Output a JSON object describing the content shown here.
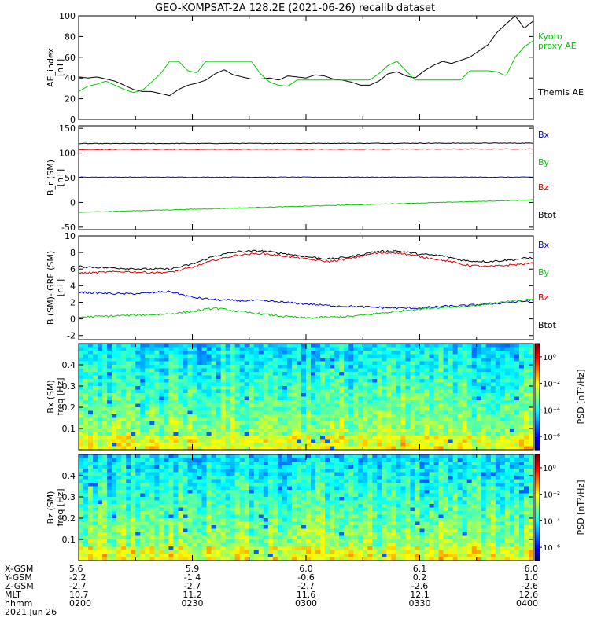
{
  "title": "GEO-KOMPSAT-2A 128.2E (2021-06-26) recalib dataset",
  "colors": {
    "black": "#000000",
    "red": "#dd0000",
    "green": "#00cc00",
    "blue": "#0000cc"
  },
  "chart_data": [
    {
      "type": "line",
      "ylabel": "AE_index",
      "yunits": "[nT]",
      "ylim": [
        0,
        100
      ],
      "yticks": [
        "0",
        "20",
        "40",
        "60",
        "80",
        "100"
      ],
      "legend": [
        {
          "label": "Kyoto",
          "color": "green"
        },
        {
          "label": "proxy AE",
          "color": "green"
        },
        {
          "label": "Themis AE",
          "color": "black"
        }
      ],
      "x": [
        0,
        0.02,
        0.04,
        0.06,
        0.08,
        0.1,
        0.12,
        0.14,
        0.16,
        0.18,
        0.2,
        0.22,
        0.24,
        0.26,
        0.28,
        0.3,
        0.32,
        0.34,
        0.36,
        0.38,
        0.4,
        0.42,
        0.44,
        0.46,
        0.48,
        0.5,
        0.52,
        0.54,
        0.56,
        0.58,
        0.6,
        0.62,
        0.64,
        0.66,
        0.68,
        0.7,
        0.72,
        0.74,
        0.76,
        0.78,
        0.8,
        0.82,
        0.84,
        0.86,
        0.88,
        0.9,
        0.92,
        0.94,
        0.96,
        0.98,
        1.0
      ],
      "series": [
        {
          "color": "black",
          "values": [
            41,
            40,
            41,
            39,
            37,
            33,
            29,
            27,
            27,
            25,
            23,
            29,
            33,
            35,
            38,
            44,
            48,
            43,
            41,
            39,
            39,
            40,
            38,
            42,
            41,
            40,
            43,
            42,
            39,
            38,
            36,
            33,
            33,
            37,
            44,
            46,
            42,
            40,
            47,
            52,
            56,
            54,
            57,
            60,
            66,
            72,
            84,
            92,
            100,
            88,
            95
          ]
        },
        {
          "color": "green",
          "values": [
            27,
            32,
            34,
            37,
            33,
            29,
            26,
            28,
            36,
            44,
            56,
            56,
            47,
            45,
            56,
            56,
            56,
            56,
            56,
            56,
            44,
            36,
            33,
            32,
            38,
            38,
            38,
            38,
            38,
            38,
            38,
            38,
            38,
            44,
            52,
            56,
            47,
            38,
            38,
            38,
            38,
            38,
            38,
            47,
            47,
            47,
            46,
            42,
            60,
            70,
            76
          ]
        }
      ]
    },
    {
      "type": "line",
      "ylabel": "B_r (SM)",
      "yunits": "[nT]",
      "ylim": [
        -55,
        155
      ],
      "yticks": [
        "-50",
        "0",
        "50",
        "100",
        "150"
      ],
      "legend": [
        {
          "label": "Bx",
          "color": "blue"
        },
        {
          "label": "By",
          "color": "green"
        },
        {
          "label": "Bz",
          "color": "red"
        },
        {
          "label": "Btot",
          "color": "black"
        }
      ],
      "x": [
        0,
        1
      ],
      "series": [
        {
          "color": "black",
          "values": [
            119,
            120
          ]
        },
        {
          "color": "red",
          "values": [
            107,
            108
          ]
        },
        {
          "color": "blue",
          "values": [
            51,
            51
          ]
        },
        {
          "color": "green",
          "values": [
            -20,
            5
          ]
        }
      ]
    },
    {
      "type": "line",
      "ylabel": "B (SM)-IGRF (SM)",
      "yunits": "[nT]",
      "ylim": [
        -2.5,
        10
      ],
      "yticks": [
        "-2",
        "0",
        "2",
        "4",
        "6",
        "8",
        "10"
      ],
      "legend": [
        {
          "label": "Bx",
          "color": "blue"
        },
        {
          "label": "By",
          "color": "green"
        },
        {
          "label": "Bz",
          "color": "red"
        },
        {
          "label": "Btot",
          "color": "black"
        }
      ],
      "x": [
        0,
        0.05,
        0.1,
        0.15,
        0.2,
        0.25,
        0.3,
        0.35,
        0.4,
        0.45,
        0.5,
        0.55,
        0.6,
        0.65,
        0.7,
        0.75,
        0.8,
        0.85,
        0.9,
        0.95,
        1.0
      ],
      "series": [
        {
          "color": "black",
          "values": [
            6.3,
            6.2,
            6.1,
            6.0,
            6.0,
            6.6,
            7.6,
            8.1,
            8.2,
            7.9,
            7.5,
            7.2,
            7.5,
            8.1,
            8.2,
            7.8,
            7.6,
            7.0,
            6.9,
            7.1,
            7.4
          ]
        },
        {
          "color": "red",
          "values": [
            5.5,
            5.6,
            5.7,
            5.6,
            5.6,
            6.2,
            7.1,
            7.7,
            7.9,
            7.6,
            7.2,
            6.9,
            7.3,
            7.9,
            8.0,
            7.5,
            7.1,
            6.5,
            6.3,
            6.5,
            6.7
          ]
        },
        {
          "color": "blue",
          "values": [
            3.2,
            3.1,
            3.0,
            3.1,
            3.3,
            2.6,
            2.3,
            2.2,
            2.2,
            2.0,
            1.8,
            1.6,
            1.5,
            1.4,
            1.3,
            1.3,
            1.5,
            1.6,
            1.8,
            2.0,
            2.2
          ]
        },
        {
          "color": "green",
          "values": [
            0.2,
            0.3,
            0.4,
            0.5,
            0.6,
            0.9,
            1.3,
            0.9,
            0.6,
            0.3,
            0.1,
            0.2,
            0.3,
            0.6,
            0.9,
            1.2,
            1.4,
            1.5,
            1.8,
            2.1,
            2.4
          ]
        }
      ]
    },
    {
      "type": "heatmap",
      "ylabel": "Bx (SM)",
      "yunits": "freq [Hz]",
      "ylim": [
        0,
        0.5
      ],
      "yticks": [
        "0.1",
        "0.2",
        "0.3",
        "0.4"
      ],
      "colorbar": {
        "label": "PSD [nT²/Hz]",
        "ticks": [
          "10⁰",
          "10⁻²",
          "10⁻⁴",
          "10⁻⁶"
        ],
        "values": [
          0,
          -2,
          -4,
          -6
        ],
        "range": [
          -7,
          1
        ]
      }
    },
    {
      "type": "heatmap",
      "ylabel": "Bz (SM)",
      "yunits": "freq [Hz]",
      "ylim": [
        0,
        0.5
      ],
      "yticks": [
        "0.1",
        "0.2",
        "0.3",
        "0.4"
      ],
      "colorbar": {
        "label": "PSD [nT²/Hz]",
        "ticks": [
          "10⁰",
          "10⁻²",
          "10⁻⁴",
          "10⁻⁶"
        ],
        "values": [
          0,
          -2,
          -4,
          -6
        ],
        "range": [
          -7,
          1
        ]
      }
    }
  ],
  "ephemeris": {
    "row_labels": [
      "X-GSM",
      "Y-GSM",
      "Z-GSM",
      "MLT",
      "hhmm"
    ],
    "columns": [
      {
        "values": [
          "5.6",
          "-2.2",
          "-2.7",
          "10.7",
          "0200"
        ]
      },
      {
        "values": [
          "5.9",
          "-1.4",
          "-2.7",
          "11.2",
          "0230"
        ]
      },
      {
        "values": [
          "6.0",
          "-0.6",
          "-2.7",
          "11.6",
          "0300"
        ]
      },
      {
        "values": [
          "6.1",
          "0.2",
          "-2.6",
          "12.1",
          "0330"
        ]
      },
      {
        "values": [
          "6.0",
          "1.0",
          "-2.6",
          "12.6",
          "0400"
        ]
      }
    ],
    "date": "2021 Jun 26"
  }
}
